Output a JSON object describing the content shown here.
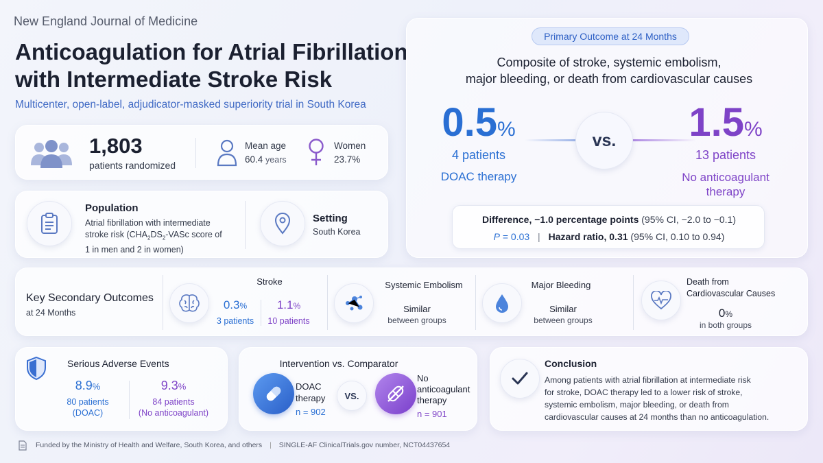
{
  "journal": "New England Journal of Medicine",
  "title_line1": "Anticoagulation for Atrial Fibrillation",
  "title_line2": "with Intermediate Stroke Risk",
  "subtitle": "Multicenter, open-label, adjudicator-masked superiority trial in South Korea",
  "stats": {
    "patients_value": "1,803",
    "patients_label": "patients randomized",
    "age_label": "Mean age",
    "age_value": "60.4",
    "age_unit": "years",
    "women_label": "Women",
    "women_value": "23.7%"
  },
  "population": {
    "heading": "Population",
    "text_l1": "Atrial fibrillation with intermediate",
    "text_l2_pre": "stroke risk (CHA",
    "sub2a": "2",
    "text_l2_mid": "DS",
    "sub2b": "2",
    "text_l2_post": "-VASc score of",
    "text_l3": "1 in men and 2 in women)"
  },
  "setting": {
    "heading": "Setting",
    "value": "South Korea"
  },
  "primary": {
    "badge": "Primary Outcome at 24 Months",
    "desc_l1": "Composite of stroke, systemic embolism,",
    "desc_l2": "major bleeding, or death from cardiovascular causes",
    "doac_value": "0.5",
    "doac_unit": "%",
    "doac_patients": "4 patients",
    "doac_label": "DOAC therapy",
    "vs": "vs.",
    "none_value": "1.5",
    "none_unit": "%",
    "none_patients": "13 patients",
    "none_label_l1": "No anticoagulant",
    "none_label_l2": "therapy",
    "diff_bold": "Difference, −1.0 percentage points",
    "diff_ci": "(95% CI, −2.0 to −0.1)",
    "p_label": "P",
    "p_value": " = 0.03",
    "sep": "|",
    "hr_bold": "Hazard ratio, 0.31",
    "hr_ci": "(95% CI, 0.10 to 0.94)"
  },
  "secondary": {
    "heading": "Key Secondary Outcomes",
    "sub": "at 24 Months",
    "stroke_title": "Stroke",
    "stroke_doac_value": "0.3",
    "stroke_doac_unit": "%",
    "stroke_doac_patients": "3 patients",
    "stroke_none_value": "1.1",
    "stroke_none_unit": "%",
    "stroke_none_patients": "10 patients",
    "embolism_title": "Systemic Embolism",
    "embolism_value": "Similar",
    "embolism_sub": "between groups",
    "bleeding_title": "Major Bleeding",
    "bleeding_value": "Similar",
    "bleeding_sub": "between groups",
    "death_title_l1": "Death from",
    "death_title_l2": "Cardiovascular Causes",
    "death_value": "0",
    "death_unit": "%",
    "death_sub": "in both groups"
  },
  "adverse": {
    "heading": "Serious Adverse Events",
    "doac_value": "8.9",
    "doac_unit": "%",
    "doac_patients": "80 patients",
    "doac_group": "(DOAC)",
    "none_value": "9.3",
    "none_unit": "%",
    "none_patients": "84 patients",
    "none_group": "(No anticoagulant)"
  },
  "intervention": {
    "heading": "Intervention vs. Comparator",
    "doac_l1": "DOAC",
    "doac_l2": "therapy",
    "doac_n": "n = 902",
    "vs": "VS.",
    "none_l1": "No",
    "none_l2": "anticoagulant",
    "none_l3": "therapy",
    "none_n": "n = 901"
  },
  "conclusion": {
    "heading": "Conclusion",
    "l1": "Among patients with atrial fibrillation at intermediate risk",
    "l2": "for stroke, DOAC therapy led to a lower risk of stroke,",
    "l3": "systemic embolism, major bleeding, or death from",
    "l4": "cardiovascular causes at 24 months than no anticoagulation."
  },
  "footer": {
    "funding": "Funded by the Ministry of Health and Welfare, South Korea, and others",
    "sep": "|",
    "trial": "SINGLE-AF ClinicalTrials.gov number, NCT04437654"
  },
  "colors": {
    "doac": "#2a6fd3",
    "none": "#7e43c7",
    "title": "#1b2030"
  },
  "icons": [
    "people-icon",
    "person-icon",
    "female-icon",
    "clipboard-icon",
    "location-pin-icon",
    "brain-icon",
    "molecule-icon",
    "blood-drop-icon",
    "heart-pulse-icon",
    "shield-icon",
    "pill-icon",
    "no-pill-icon",
    "checkmark-icon",
    "document-icon"
  ]
}
